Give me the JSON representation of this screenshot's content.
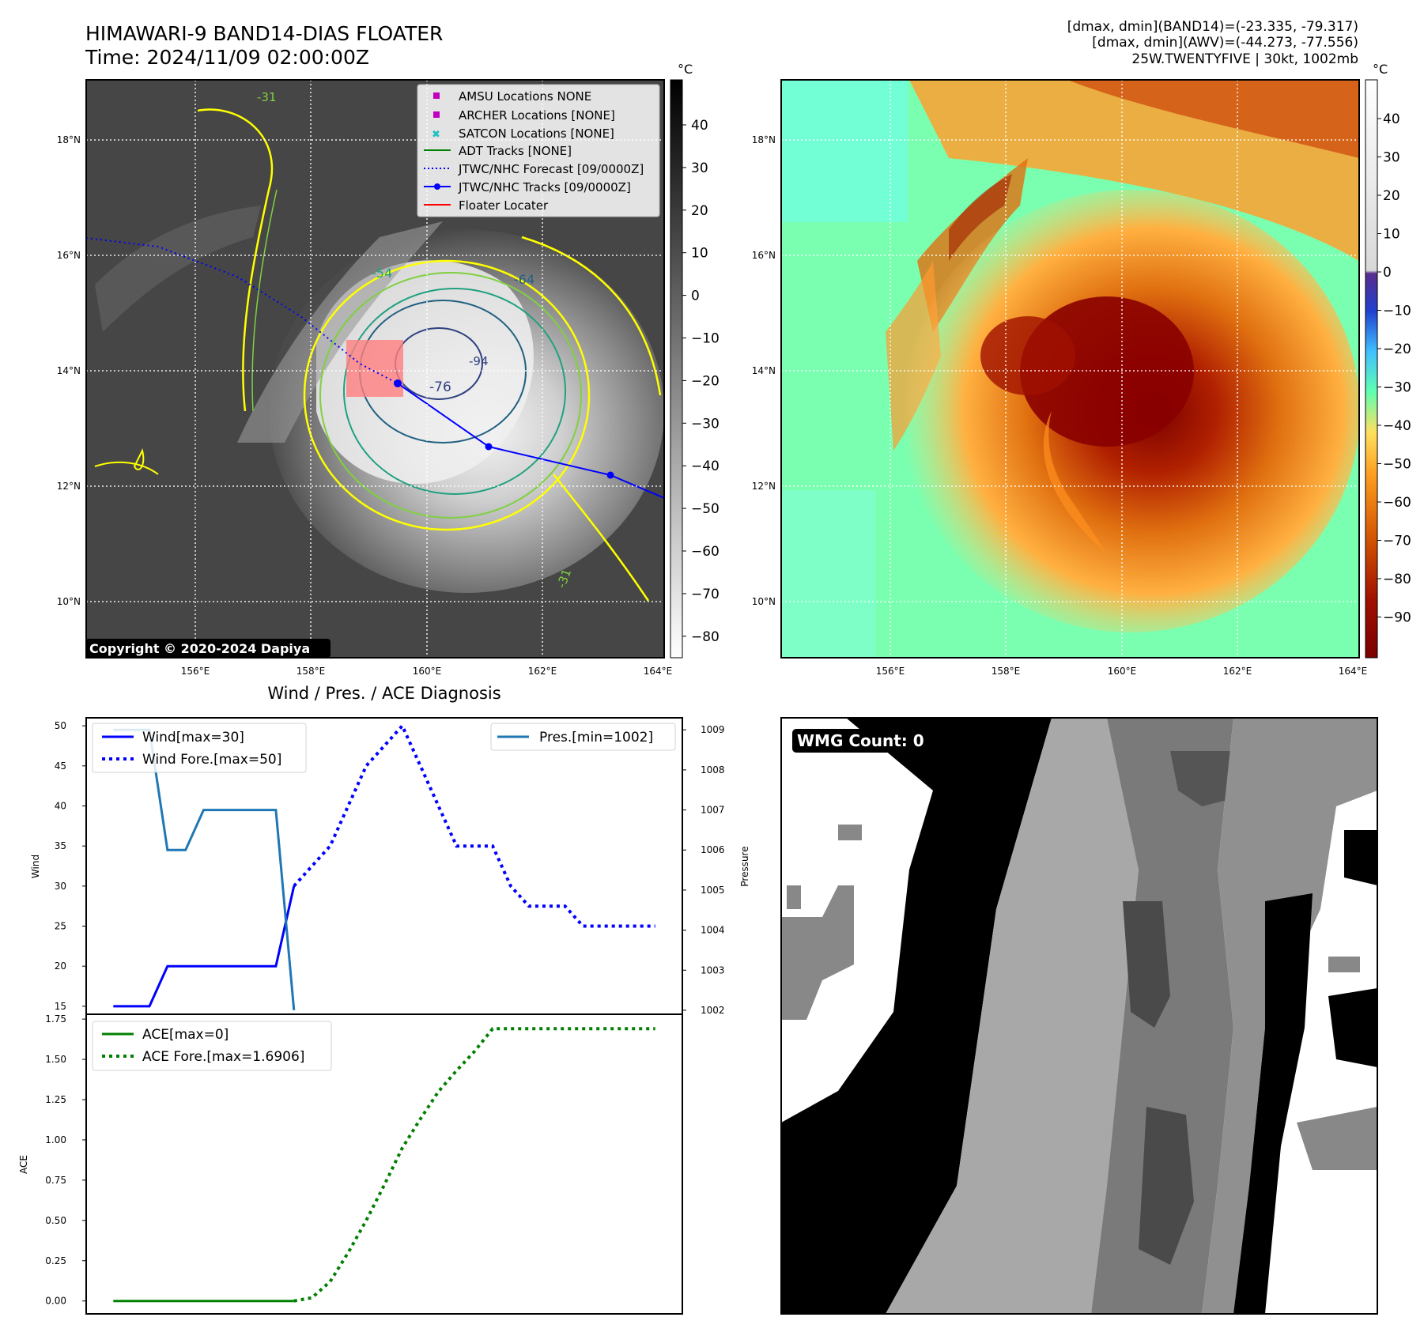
{
  "header": {
    "title_line1": "HIMAWARI-9 BAND14-DIAS FLOATER",
    "title_line2": "Time: 2024/11/09 02:00:00Z",
    "info_line1": "[dmax, dmin](BAND14)=(-23.335, -79.317)",
    "info_line2": "[dmax, dmin](AWV)=(-44.273, -77.556)",
    "info_line3": "25W.TWENTYFIVE | 30kt, 1002mb"
  },
  "maps": {
    "lon_labels": [
      "156°E",
      "158°E",
      "160°E",
      "162°E",
      "164°E"
    ],
    "lat_labels": [
      "18°N",
      "16°N",
      "14°N",
      "12°N",
      "10°N"
    ],
    "unit": "°C",
    "copyright": "Copyright © 2020-2024 Dapiya",
    "contour_labels": [
      "-31",
      "-54",
      "-64",
      "-76",
      "-94",
      "-31"
    ],
    "colorbar_left_ticks": [
      "40",
      "30",
      "20",
      "10",
      "0",
      "−10",
      "−20",
      "−30",
      "−40",
      "−50",
      "−60",
      "−70",
      "−80"
    ],
    "colorbar_right_ticks": [
      "40",
      "30",
      "20",
      "10",
      "0",
      "−10",
      "−20",
      "−30",
      "−40",
      "−50",
      "−60",
      "−70",
      "−80",
      "−90"
    ],
    "legend": [
      {
        "label": "AMSU Locations NONE",
        "color": "#c000c0",
        "symbol": "square"
      },
      {
        "label": "ARCHER Locations [NONE]",
        "color": "#c000c0",
        "symbol": "square"
      },
      {
        "label": "SATCON Locations [NONE]",
        "color": "#20c0c0",
        "symbol": "x"
      },
      {
        "label": "ADT Tracks [NONE]",
        "color": "#008000",
        "symbol": "line"
      },
      {
        "label": "JTWC/NHC Forecast [09/0000Z]",
        "color": "#0000ff",
        "symbol": "dotted"
      },
      {
        "label": "JTWC/NHC Tracks [09/0000Z]",
        "color": "#0000ff",
        "symbol": "line-dot"
      },
      {
        "label": "Floater Locater",
        "color": "#ff0000",
        "symbol": "line"
      }
    ]
  },
  "diagnosis": {
    "title": "Wind / Pres. / ACE Diagnosis",
    "wind_ylabel": "Wind",
    "pres_ylabel": "Pressure",
    "ace_ylabel": "ACE",
    "legend_wind": "Wind[max=30]",
    "legend_wind_fore": "Wind Fore.[max=50]",
    "legend_pres": "Pres.[min=1002]",
    "legend_ace": "ACE[max=0]",
    "legend_ace_fore": "ACE Fore.[max=1.6906]"
  },
  "wmg": {
    "label": "WMG Count: 0"
  },
  "chart_data": [
    {
      "type": "line",
      "title": "Wind / Pres. / ACE Diagnosis",
      "ylabel": "Wind",
      "ylim": [
        14,
        51
      ],
      "yticks": [
        15,
        20,
        25,
        30,
        35,
        40,
        45,
        50
      ],
      "y2label": "Pressure",
      "y2lim": [
        1001.9,
        1009.3
      ],
      "y2ticks": [
        1002,
        1003,
        1004,
        1005,
        1006,
        1007,
        1008,
        1009
      ],
      "xlim": [
        -1.5,
        31.5
      ],
      "series": [
        {
          "name": "Wind[max=30]",
          "style": "solid",
          "color": "#0000ff",
          "x": [
            0,
            2,
            3,
            4,
            5,
            6,
            7,
            8,
            9,
            10
          ],
          "y": [
            15,
            15,
            20,
            20,
            20,
            20,
            20,
            20,
            20,
            30
          ]
        },
        {
          "name": "Wind Fore.[max=50]",
          "style": "dotted",
          "color": "#0000ff",
          "x": [
            10,
            11,
            12,
            13,
            14,
            15,
            16,
            17,
            18,
            19,
            20,
            21,
            22,
            23,
            24,
            25,
            26,
            27,
            28,
            29,
            30
          ],
          "y": [
            30,
            32.5,
            35,
            40,
            45,
            47.5,
            50,
            45,
            40,
            35,
            35,
            35,
            30,
            27.5,
            27.5,
            27.5,
            25,
            25,
            25,
            25,
            25
          ]
        },
        {
          "name": "Pres.[min=1002]",
          "style": "solid",
          "color": "#1f77b4",
          "axis": "y2",
          "x": [
            0,
            2,
            3,
            4,
            5,
            6,
            7,
            8,
            9,
            10
          ],
          "y": [
            1009,
            1009,
            1006,
            1006,
            1007,
            1007,
            1007,
            1007,
            1007,
            1002
          ]
        }
      ]
    },
    {
      "type": "line",
      "ylabel": "ACE",
      "ylim": [
        -0.08,
        1.78
      ],
      "yticks": [
        0,
        0.25,
        0.5,
        0.75,
        1.0,
        1.25,
        1.5,
        1.75
      ],
      "ytick_labels": [
        "0.00",
        "0.25",
        "0.50",
        "0.75",
        "1.00",
        "1.25",
        "1.50",
        "1.75"
      ],
      "xlim": [
        -1.5,
        31.5
      ],
      "series": [
        {
          "name": "ACE[max=0]",
          "style": "solid",
          "color": "#008000",
          "x": [
            0,
            2,
            4,
            6,
            8,
            10
          ],
          "y": [
            0,
            0,
            0,
            0,
            0,
            0
          ]
        },
        {
          "name": "ACE Fore.[max=1.6906]",
          "style": "dotted",
          "color": "#008000",
          "x": [
            10,
            11,
            12,
            13,
            14,
            15,
            16,
            17,
            18,
            19,
            20,
            21,
            22,
            24,
            26,
            28,
            30
          ],
          "y": [
            0,
            0.02,
            0.12,
            0.3,
            0.5,
            0.72,
            0.95,
            1.13,
            1.3,
            1.43,
            1.55,
            1.69,
            1.69,
            1.69,
            1.69,
            1.69,
            1.69
          ]
        }
      ]
    }
  ]
}
